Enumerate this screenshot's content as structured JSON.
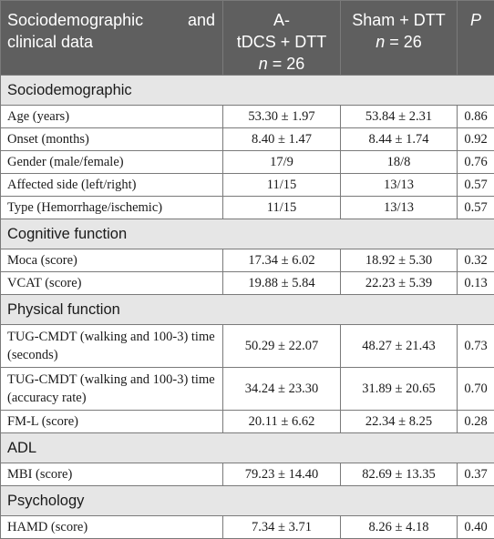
{
  "header": {
    "col1": "Sociodemographic and clinical data",
    "col2_line1": "A-",
    "col2_line2": "tDCS + DTT",
    "col2_n_label": "n",
    "col2_n_value": " = 26",
    "col3_line1": "Sham + DTT",
    "col3_n_label": "n",
    "col3_n_value": " = 26",
    "col4": "P"
  },
  "sections": [
    {
      "title": "Sociodemographic",
      "rows": [
        {
          "label": "Age (years)",
          "a": "53.30 ± 1.97",
          "sham": "53.84 ± 2.31",
          "p": "0.86"
        },
        {
          "label": "Onset (months)",
          "a": "8.40 ± 1.47",
          "sham": "8.44 ± 1.74",
          "p": "0.92"
        },
        {
          "label": "Gender (male/female)",
          "a": "17/9",
          "sham": "18/8",
          "p": "0.76"
        },
        {
          "label": "Affected side (left/right)",
          "a": "11/15",
          "sham": "13/13",
          "p": "0.57"
        },
        {
          "label": "Type (Hemorrhage/ischemic)",
          "a": "11/15",
          "sham": "13/13",
          "p": "0.57"
        }
      ]
    },
    {
      "title": "Cognitive function",
      "rows": [
        {
          "label": "Moca (score)",
          "a": "17.34 ± 6.02",
          "sham": "18.92 ± 5.30",
          "p": "0.32"
        },
        {
          "label": "VCAT (score)",
          "a": "19.88 ± 5.84",
          "sham": "22.23 ± 5.39",
          "p": "0.13"
        }
      ]
    },
    {
      "title": "Physical function",
      "rows": [
        {
          "label": "TUG-CMDT (walking and 100-3) time (seconds)",
          "a": "50.29 ± 22.07",
          "sham": "48.27 ± 21.43",
          "p": "0.73",
          "tall": true
        },
        {
          "label": "TUG-CMDT (walking and 100-3) time (accuracy rate)",
          "a": "34.24 ± 23.30",
          "sham": "31.89 ± 20.65",
          "p": "0.70",
          "tall": true
        },
        {
          "label": "FM-L (score)",
          "a": "20.11 ± 6.62",
          "sham": "22.34 ± 8.25",
          "p": "0.28"
        }
      ]
    },
    {
      "title": "ADL",
      "rows": [
        {
          "label": "MBI (score)",
          "a": "79.23 ± 14.40",
          "sham": "82.69 ± 13.35",
          "p": "0.37"
        }
      ]
    },
    {
      "title": "Psychology",
      "rows": [
        {
          "label": "HAMD (score)",
          "a": "7.34 ± 3.71",
          "sham": "8.26 ± 4.18",
          "p": "0.40"
        }
      ]
    }
  ]
}
